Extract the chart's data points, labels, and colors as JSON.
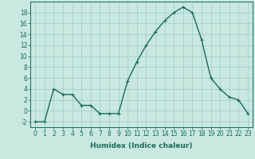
{
  "x": [
    0,
    1,
    2,
    3,
    4,
    5,
    6,
    7,
    8,
    9,
    10,
    11,
    12,
    13,
    14,
    15,
    16,
    17,
    18,
    19,
    20,
    21,
    22,
    23
  ],
  "y": [
    -2,
    -2,
    4,
    3,
    3,
    1,
    1,
    -0.5,
    -0.5,
    -0.5,
    5.5,
    9,
    12,
    14.5,
    16.5,
    18,
    19,
    18,
    13,
    6,
    4,
    2.5,
    2,
    -0.5
  ],
  "line_color": "#1a6b5a",
  "marker": "+",
  "marker_size": 3,
  "bg_color": "#c8e8e0",
  "grid_color": "#9ecec4",
  "xlabel": "Humidex (Indice chaleur)",
  "xlim": [
    -0.5,
    23.5
  ],
  "ylim": [
    -3,
    20
  ],
  "yticks": [
    -2,
    0,
    2,
    4,
    6,
    8,
    10,
    12,
    14,
    16,
    18
  ],
  "xticks": [
    0,
    1,
    2,
    3,
    4,
    5,
    6,
    7,
    8,
    9,
    10,
    11,
    12,
    13,
    14,
    15,
    16,
    17,
    18,
    19,
    20,
    21,
    22,
    23
  ],
  "tick_label_fontsize": 5.5,
  "xlabel_fontsize": 6.5,
  "linewidth": 1.0
}
